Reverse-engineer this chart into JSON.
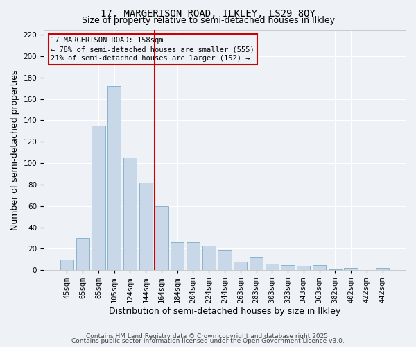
{
  "title": "17, MARGERISON ROAD, ILKLEY, LS29 8QY",
  "subtitle": "Size of property relative to semi-detached houses in Ilkley",
  "xlabel": "Distribution of semi-detached houses by size in Ilkley",
  "ylabel": "Number of semi-detached properties",
  "categories": [
    "45sqm",
    "65sqm",
    "85sqm",
    "105sqm",
    "124sqm",
    "144sqm",
    "164sqm",
    "184sqm",
    "204sqm",
    "224sqm",
    "244sqm",
    "263sqm",
    "283sqm",
    "303sqm",
    "323sqm",
    "343sqm",
    "363sqm",
    "382sqm",
    "402sqm",
    "422sqm",
    "442sqm"
  ],
  "values": [
    10,
    30,
    135,
    172,
    105,
    82,
    60,
    26,
    26,
    23,
    19,
    8,
    12,
    6,
    5,
    4,
    5,
    1,
    2,
    0,
    2
  ],
  "bar_color": "#c8d8e8",
  "bar_edge_color": "#8ab4cc",
  "vline_color": "#cc0000",
  "vline_pos": 5.575,
  "annotation_title": "17 MARGERISON ROAD: 158sqm",
  "annotation_line1": "← 78% of semi-detached houses are smaller (555)",
  "annotation_line2": "21% of semi-detached houses are larger (152) →",
  "annotation_box_color": "#cc0000",
  "ylim": [
    0,
    225
  ],
  "yticks": [
    0,
    20,
    40,
    60,
    80,
    100,
    120,
    140,
    160,
    180,
    200,
    220
  ],
  "footer1": "Contains HM Land Registry data © Crown copyright and database right 2025.",
  "footer2": "Contains public sector information licensed under the Open Government Licence v3.0.",
  "background_color": "#eef2f6",
  "grid_color": "#ffffff",
  "title_fontsize": 10,
  "subtitle_fontsize": 9,
  "axis_label_fontsize": 9,
  "tick_fontsize": 7.5,
  "footer_fontsize": 6.5,
  "annotation_fontsize": 7.5
}
